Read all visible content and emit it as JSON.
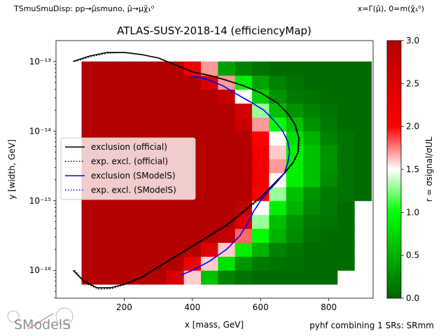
{
  "header": {
    "left": "TSmuSmuDisp: pp→μ̃smuno, μ̃→μχ̃₁⁰",
    "right": "x=Γ(μ̃), 0=m(χ̃₁⁰)"
  },
  "footer": {
    "note": "pyhf combining 1 SRs: SRmm",
    "logo_text": "SModelS"
  },
  "chart_data": {
    "type": "heatmap",
    "title": "ATLAS-SUSY-2018-14 (efficiencyMap)",
    "xlabel": "x [mass, GeV]",
    "ylabel": "y [width, GeV]",
    "xlim": [
      0,
      930
    ],
    "ylim_log10": [
      -16.4,
      -12.7
    ],
    "x_ticks": [
      {
        "value": 200,
        "label": "200"
      },
      {
        "value": 400,
        "label": "400"
      },
      {
        "value": 600,
        "label": "600"
      },
      {
        "value": 800,
        "label": "800"
      }
    ],
    "y_ticks": [
      {
        "exp": -13,
        "label": "10⁻¹³"
      },
      {
        "exp": -14,
        "label": "10⁻¹⁴"
      },
      {
        "exp": -15,
        "label": "10⁻¹⁵"
      },
      {
        "exp": -16,
        "label": "10⁻¹⁶"
      }
    ],
    "colorbar": {
      "label": "r = σsignal/σUL",
      "min": 0,
      "max": 3,
      "ticks": [
        "0.0",
        "0.5",
        "1.0",
        "1.5",
        "2.0",
        "2.5",
        "3.0"
      ],
      "colors": [
        "#006400",
        "#00ff00",
        "#ffffff",
        "#ff0000",
        "#b40000"
      ]
    },
    "grid": {
      "x_start": 75,
      "x_step": 50,
      "nx": 17,
      "logy_start": -16.2,
      "logy_step": 0.2,
      "ny": 16,
      "rows": [
        [
          3,
          3,
          3,
          3,
          3,
          2.5,
          1.6,
          0.6,
          0.2,
          0.1,
          0.05,
          0.05,
          0.05,
          0.05,
          0.05,
          null,
          null
        ],
        [
          3,
          3,
          3,
          3,
          3,
          3,
          2.2,
          1.6,
          0.8,
          0.3,
          0.15,
          0.1,
          0.08,
          0.05,
          0.05,
          0.05,
          null
        ],
        [
          3,
          3,
          3,
          3,
          3,
          3,
          3,
          2.4,
          1.6,
          0.9,
          0.5,
          0.2,
          0.1,
          0.05,
          0.05,
          0.05,
          null
        ],
        [
          3,
          3,
          3,
          3,
          3,
          3,
          3,
          3,
          2.8,
          1.8,
          1.0,
          0.5,
          0.25,
          0.1,
          0.05,
          0.05,
          null
        ],
        [
          3,
          3,
          3,
          3,
          3,
          3,
          3,
          3,
          3,
          2.4,
          1.3,
          0.6,
          0.3,
          0.15,
          0.1,
          0.05,
          null
        ],
        [
          3,
          3,
          3,
          3,
          3,
          3,
          3,
          3,
          3,
          2.8,
          1.5,
          0.9,
          0.5,
          0.25,
          0.15,
          0.05,
          null
        ],
        [
          3,
          3,
          3,
          3,
          3,
          3,
          3,
          3,
          3,
          3,
          2.0,
          1.3,
          0.6,
          0.3,
          0.15,
          0.1,
          0.05
        ],
        [
          3,
          3,
          3,
          3,
          3,
          3,
          3,
          3,
          3,
          3,
          2.2,
          1.5,
          0.9,
          0.6,
          0.25,
          0.1,
          0.05
        ],
        [
          3,
          3,
          3,
          3,
          3,
          3,
          3,
          3,
          3,
          3,
          2.2,
          1.7,
          0.9,
          0.6,
          0.3,
          0.1,
          0.05
        ],
        [
          3,
          3,
          3,
          3,
          3,
          3,
          3,
          3,
          3,
          3,
          2.2,
          1.6,
          0.9,
          0.6,
          0.3,
          0.1,
          0.05
        ],
        [
          3,
          3,
          3,
          3,
          3,
          3,
          3,
          3,
          3,
          3,
          2.0,
          1.5,
          0.8,
          0.5,
          0.2,
          0.1,
          0.05
        ],
        [
          3,
          3,
          3,
          3,
          3,
          3,
          3,
          3,
          3,
          2.7,
          1.7,
          1.0,
          0.6,
          0.3,
          0.15,
          0.05,
          0.05
        ],
        [
          3,
          3,
          3,
          3,
          3,
          3,
          3,
          3,
          3,
          2.6,
          1.3,
          0.6,
          0.3,
          0.2,
          0.1,
          0.05,
          0.05
        ],
        [
          3,
          3,
          3,
          3,
          3,
          3,
          3,
          3,
          2.8,
          1.5,
          0.7,
          0.3,
          0.15,
          0.1,
          0.05,
          0.05,
          0.05
        ],
        [
          3,
          3,
          3,
          3,
          3,
          3,
          3,
          2.5,
          1.7,
          0.9,
          0.4,
          0.2,
          0.1,
          0.05,
          0.05,
          0.05,
          0.05
        ],
        [
          3,
          3,
          3,
          3,
          3,
          3,
          2.2,
          1.7,
          0.4,
          0.2,
          0.1,
          0.05,
          0.05,
          0.05,
          0.05,
          0.05,
          0.05
        ]
      ]
    },
    "series": [
      {
        "name": "exclusion (official)",
        "color": "#000000",
        "style": "solid",
        "points": [
          [
            50,
            -16.0
          ],
          [
            80,
            -16.15
          ],
          [
            120,
            -16.25
          ],
          [
            160,
            -16.25
          ],
          [
            200,
            -16.2
          ],
          [
            250,
            -16.1
          ],
          [
            300,
            -15.95
          ],
          [
            350,
            -15.8
          ],
          [
            400,
            -15.65
          ],
          [
            450,
            -15.5
          ],
          [
            500,
            -15.35
          ],
          [
            550,
            -15.15
          ],
          [
            600,
            -14.95
          ],
          [
            640,
            -14.75
          ],
          [
            670,
            -14.6
          ],
          [
            695,
            -14.45
          ],
          [
            710,
            -14.3
          ],
          [
            712,
            -14.1
          ],
          [
            700,
            -13.9
          ],
          [
            680,
            -13.75
          ],
          [
            650,
            -13.6
          ],
          [
            600,
            -13.45
          ],
          [
            550,
            -13.35
          ],
          [
            500,
            -13.27
          ],
          [
            450,
            -13.2
          ],
          [
            400,
            -13.15
          ],
          [
            350,
            -13.05
          ],
          [
            300,
            -12.95
          ],
          [
            250,
            -12.9
          ],
          [
            200,
            -12.87
          ],
          [
            150,
            -12.87
          ],
          [
            100,
            -12.92
          ],
          [
            50,
            -13.0
          ]
        ]
      },
      {
        "name": "exp. excl. (official)",
        "color": "#000000",
        "style": "dotted",
        "points": [
          [
            55,
            -16.0
          ],
          [
            85,
            -16.18
          ],
          [
            125,
            -16.27
          ],
          [
            165,
            -16.26
          ],
          [
            205,
            -16.2
          ],
          [
            255,
            -16.1
          ],
          [
            305,
            -15.95
          ],
          [
            355,
            -15.8
          ],
          [
            405,
            -15.65
          ],
          [
            455,
            -15.5
          ],
          [
            505,
            -15.35
          ],
          [
            555,
            -15.15
          ],
          [
            605,
            -14.95
          ],
          [
            642,
            -14.75
          ],
          [
            672,
            -14.6
          ],
          [
            697,
            -14.45
          ],
          [
            712,
            -14.3
          ],
          [
            714,
            -14.1
          ],
          [
            702,
            -13.9
          ],
          [
            682,
            -13.75
          ],
          [
            652,
            -13.6
          ],
          [
            602,
            -13.45
          ],
          [
            552,
            -13.35
          ],
          [
            502,
            -13.27
          ],
          [
            452,
            -13.2
          ],
          [
            402,
            -13.15
          ],
          [
            352,
            -13.05
          ],
          [
            302,
            -12.95
          ],
          [
            252,
            -12.9
          ],
          [
            202,
            -12.87
          ],
          [
            152,
            -12.88
          ],
          [
            102,
            -12.93
          ],
          [
            55,
            -13.0
          ]
        ]
      },
      {
        "name": "exclusion (SModelS)",
        "color": "#0000ff",
        "style": "solid",
        "points": [
          [
            365,
            -16.07
          ],
          [
            400,
            -16.0
          ],
          [
            450,
            -15.87
          ],
          [
            500,
            -15.7
          ],
          [
            540,
            -15.5
          ],
          [
            565,
            -15.3
          ],
          [
            580,
            -15.15
          ],
          [
            600,
            -15.0
          ],
          [
            625,
            -14.85
          ],
          [
            650,
            -14.72
          ],
          [
            670,
            -14.6
          ],
          [
            680,
            -14.45
          ],
          [
            685,
            -14.3
          ],
          [
            680,
            -14.15
          ],
          [
            665,
            -14.0
          ],
          [
            640,
            -13.85
          ],
          [
            610,
            -13.7
          ],
          [
            570,
            -13.58
          ],
          [
            530,
            -13.47
          ],
          [
            490,
            -13.35
          ],
          [
            450,
            -13.27
          ],
          [
            420,
            -13.23
          ],
          [
            395,
            -13.22
          ]
        ]
      },
      {
        "name": "exp. excl. (SModelS)",
        "color": "#0000ff",
        "style": "dotted",
        "points": []
      }
    ],
    "legend": {
      "placement": "center-left",
      "entries": [
        {
          "label": "exclusion (official)",
          "color": "#000000",
          "style": "solid"
        },
        {
          "label": "exp. excl. (official)",
          "color": "#000000",
          "style": "dotted"
        },
        {
          "label": "exclusion (SModelS)",
          "color": "#0000ff",
          "style": "solid"
        },
        {
          "label": "exp. excl. (SModelS)",
          "color": "#0000ff",
          "style": "dotted"
        }
      ]
    }
  }
}
